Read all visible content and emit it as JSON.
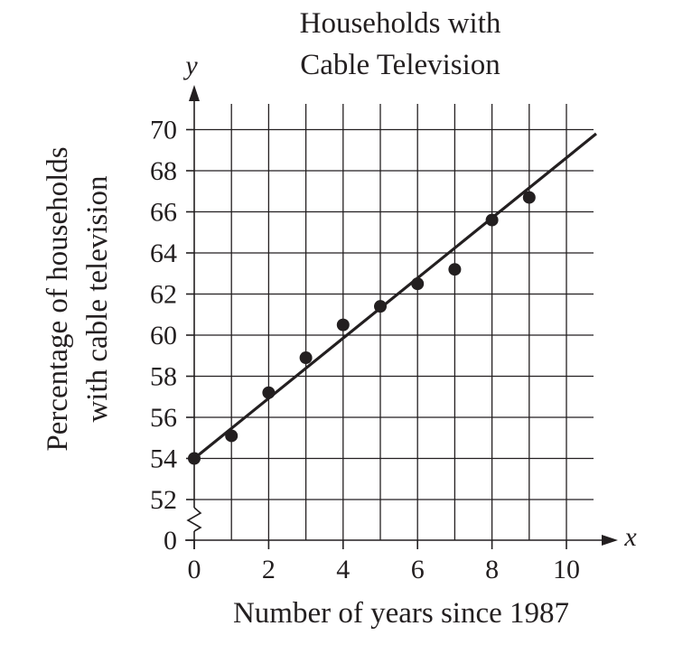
{
  "chart_data": {
    "type": "scatter",
    "title_lines": [
      "Households with",
      "Cable Television"
    ],
    "xlabel": "Number of years since 1987",
    "ylabel_lines": [
      "Percentage of households",
      "with cable television"
    ],
    "x_axis_var": "x",
    "y_axis_var": "y",
    "x_ticks": [
      "0",
      "2",
      "4",
      "6",
      "8",
      "10"
    ],
    "y_ticks": [
      "0",
      "52",
      "54",
      "56",
      "58",
      "60",
      "62",
      "64",
      "66",
      "68",
      "70"
    ],
    "xlim": [
      0,
      10
    ],
    "ylim": [
      52,
      70
    ],
    "y_axis_break": true,
    "grid": true,
    "points": [
      {
        "x": 0,
        "y": 54
      },
      {
        "x": 1,
        "y": 55.1
      },
      {
        "x": 2,
        "y": 57.2
      },
      {
        "x": 3,
        "y": 58.9
      },
      {
        "x": 4,
        "y": 60.5
      },
      {
        "x": 5,
        "y": 61.4
      },
      {
        "x": 6,
        "y": 62.5
      },
      {
        "x": 7,
        "y": 63.2
      },
      {
        "x": 8,
        "y": 65.6
      },
      {
        "x": 9,
        "y": 66.7
      }
    ],
    "fit_line": {
      "x_start": 0,
      "y_start": 54,
      "x_end": 10.8,
      "y_end": 69.8
    }
  }
}
